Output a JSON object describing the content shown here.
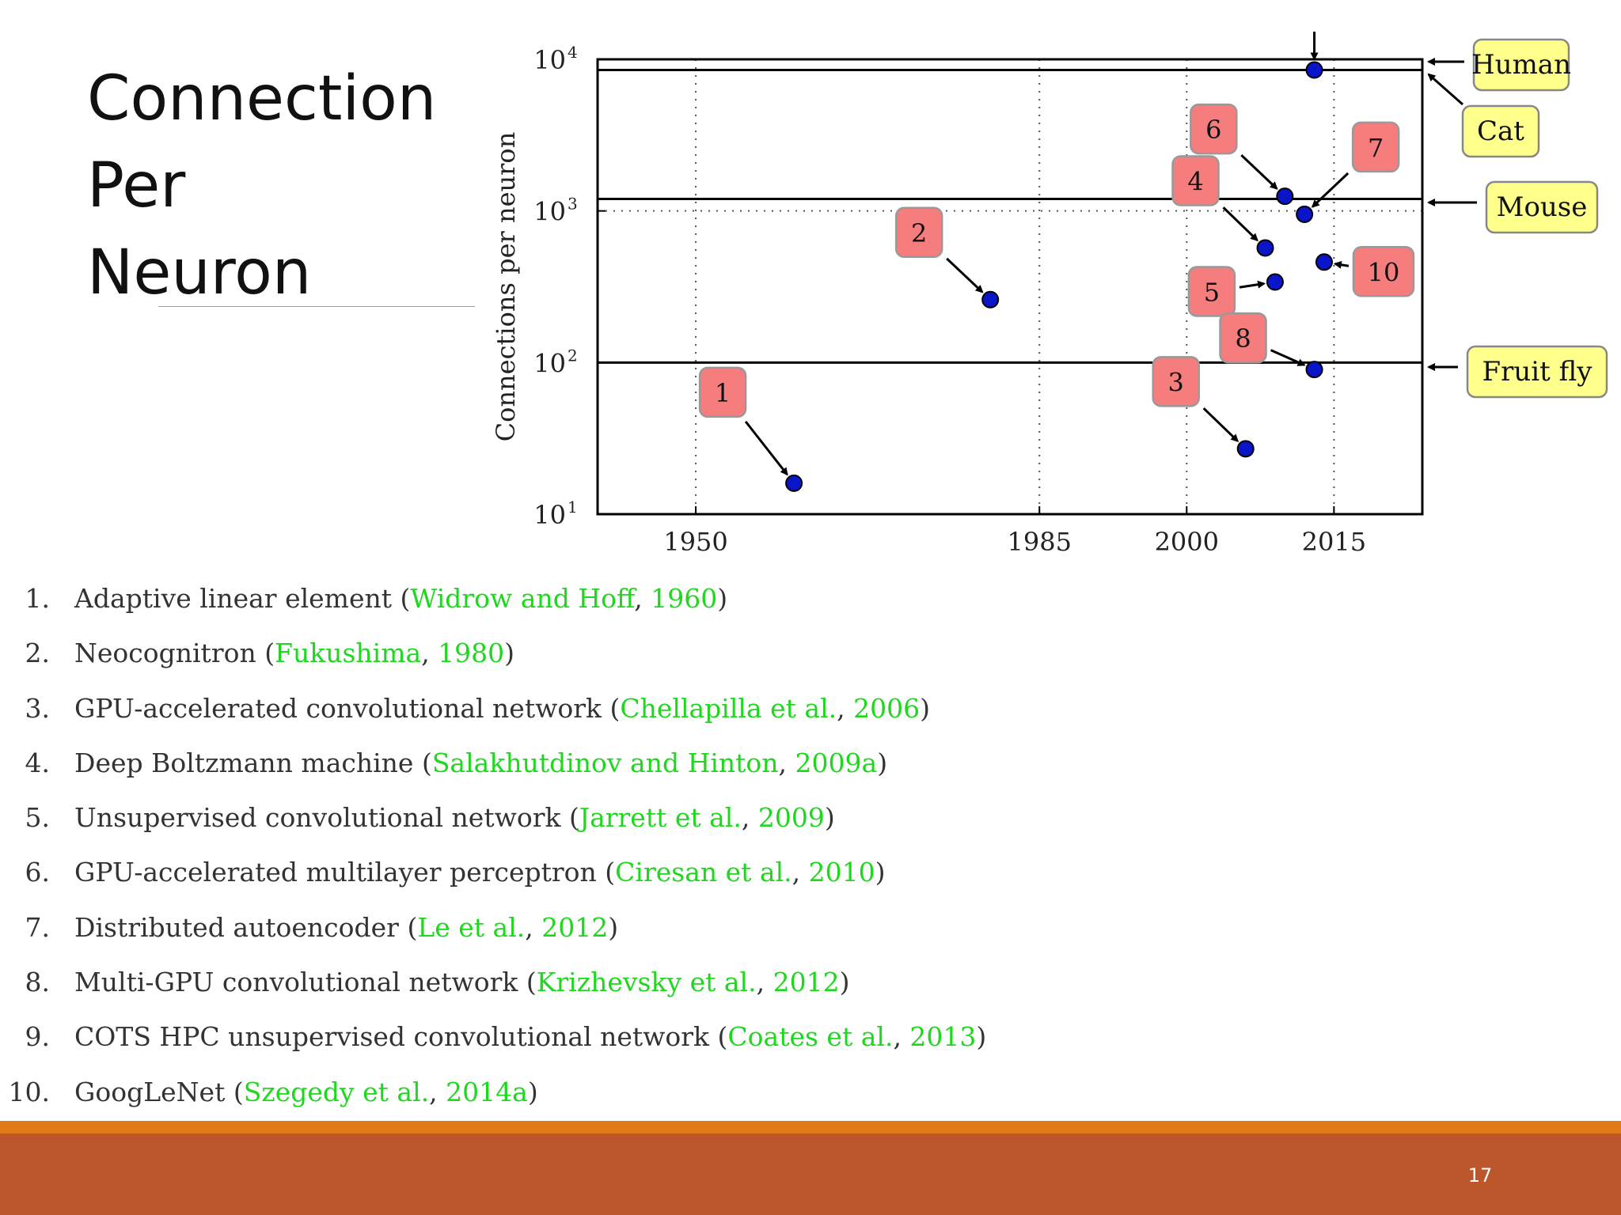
{
  "slide": {
    "title_lines": [
      "Connection",
      "Per",
      "Neuron"
    ],
    "page_number": "17"
  },
  "colors": {
    "point_fill": "#0a14c8",
    "label_box": "#f67d7d",
    "species_box": "#ffff8c",
    "citation": "#1ed81e",
    "footer_bar": "#bc562b",
    "footer_stripe": "#e07b18"
  },
  "chart_data": {
    "type": "scatter",
    "ylabel": "Connections per neuron",
    "y_scale": "log",
    "ylim": [
      10,
      10000
    ],
    "xlim": [
      1940,
      2024
    ],
    "x_ticks": [
      1950,
      1985,
      2000,
      2015
    ],
    "y_ticks": [
      {
        "value": 10,
        "base": "10",
        "exp": "1"
      },
      {
        "value": 100,
        "base": "10",
        "exp": "2"
      },
      {
        "value": 1000,
        "base": "10",
        "exp": "3"
      },
      {
        "value": 10000,
        "base": "10",
        "exp": "4"
      }
    ],
    "points": [
      {
        "id": "1",
        "year": 1960,
        "value": 16
      },
      {
        "id": "2",
        "year": 1980,
        "value": 260
      },
      {
        "id": "3",
        "year": 2006,
        "value": 27
      },
      {
        "id": "4",
        "year": 2008,
        "value": 570
      },
      {
        "id": "5",
        "year": 2009,
        "value": 340
      },
      {
        "id": "6",
        "year": 2010,
        "value": 1250
      },
      {
        "id": "7",
        "year": 2012,
        "value": 950
      },
      {
        "id": "8",
        "year": 2013,
        "value": 90
      },
      {
        "id": "9",
        "year": 2013,
        "value": 8500
      },
      {
        "id": "10",
        "year": 2014,
        "value": 460
      }
    ],
    "reference_lines": [
      {
        "name": "Human",
        "value": 10000
      },
      {
        "name": "Cat",
        "value": 8500
      },
      {
        "name": "Mouse",
        "value": 1200
      },
      {
        "name": "Fruit fly",
        "value": 100
      }
    ]
  },
  "references": [
    {
      "num": "1.",
      "text": "Adaptive linear element",
      "cite_author": "Widrow and Hoff",
      "cite_year": "1960"
    },
    {
      "num": "2.",
      "text": "Neocognitron",
      "cite_author": "Fukushima",
      "cite_year": "1980"
    },
    {
      "num": "3.",
      "text": "GPU-accelerated convolutional network",
      "cite_author": "Chellapilla et al.",
      "cite_year": "2006"
    },
    {
      "num": "4.",
      "text": "Deep Boltzmann machine",
      "cite_author": "Salakhutdinov and Hinton",
      "cite_year": "2009a"
    },
    {
      "num": "5.",
      "text": "Unsupervised convolutional network",
      "cite_author": "Jarrett et al.",
      "cite_year": "2009"
    },
    {
      "num": "6.",
      "text": "GPU-accelerated multilayer perceptron",
      "cite_author": "Ciresan et al.",
      "cite_year": "2010"
    },
    {
      "num": "7.",
      "text": "Distributed autoencoder",
      "cite_author": "Le et al.",
      "cite_year": "2012"
    },
    {
      "num": "8.",
      "text": "Multi-GPU convolutional network",
      "cite_author": "Krizhevsky et al.",
      "cite_year": "2012"
    },
    {
      "num": "9.",
      "text": "COTS HPC unsupervised convolutional network",
      "cite_author": "Coates et al.",
      "cite_year": "2013"
    },
    {
      "num": "10.",
      "text": "GoogLeNet",
      "cite_author": "Szegedy et al.",
      "cite_year": "2014a"
    }
  ]
}
